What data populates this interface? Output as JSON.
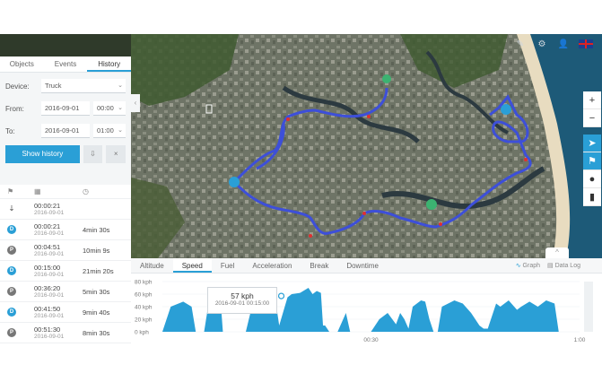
{
  "tabs": [
    {
      "label": "Objects"
    },
    {
      "label": "Events"
    },
    {
      "label": "History"
    }
  ],
  "form": {
    "device_label": "Device:",
    "device_value": "Truck",
    "from_label": "From:",
    "from_date": "2016-09-01",
    "from_time": "00:00",
    "to_label": "To:",
    "to_date": "2016-09-01",
    "to_time": "01:00",
    "show_history": "Show history"
  },
  "history": [
    {
      "type": "",
      "time": "00:00:21",
      "date": "2016-09-01",
      "duration": ""
    },
    {
      "type": "D",
      "time": "00:00:21",
      "date": "2016-09-01",
      "duration": "4min 30s"
    },
    {
      "type": "P",
      "time": "00:04:51",
      "date": "2016-09-01",
      "duration": "10min 9s"
    },
    {
      "type": "D",
      "time": "00:15:00",
      "date": "2016-09-01",
      "duration": "21min 20s"
    },
    {
      "type": "P",
      "time": "00:36:20",
      "date": "2016-09-01",
      "duration": "5min 30s"
    },
    {
      "type": "D",
      "time": "00:41:50",
      "date": "2016-09-01",
      "duration": "9min 40s"
    },
    {
      "type": "P",
      "time": "00:51:30",
      "date": "2016-09-01",
      "duration": "8min 30s"
    }
  ],
  "bottom": {
    "tabs": [
      "Altitude",
      "Speed",
      "Fuel",
      "Acceleration",
      "Break",
      "Downtime"
    ],
    "graph_label": "Graph",
    "datalog_label": "Data Log"
  },
  "tooltip": {
    "value": "57 kph",
    "datetime": "2016-09-01 00:15:00"
  },
  "colors": {
    "accent": "#2a9fd6",
    "route": "#3d4fd9",
    "chart_fill": "#2a9fd6"
  },
  "chart_data": {
    "type": "area",
    "ylabels": [
      "80 kph",
      "60 kph",
      "40 kph",
      "20 kph",
      "0 kph"
    ],
    "yticks": [
      80,
      60,
      40,
      20,
      0
    ],
    "ylim": [
      0,
      80
    ],
    "xlabels": [
      {
        "t": 0.5,
        "label": "00:30"
      },
      {
        "t": 1.0,
        "label": "1:00"
      }
    ],
    "x": [
      0.0,
      0.02,
      0.05,
      0.07,
      0.08,
      0.1,
      0.11,
      0.12,
      0.13,
      0.14,
      0.145,
      0.16,
      0.2,
      0.22,
      0.25,
      0.27,
      0.28,
      0.3,
      0.31,
      0.33,
      0.35,
      0.36,
      0.37,
      0.38,
      0.385,
      0.39,
      0.4,
      0.42,
      0.44,
      0.45,
      0.47,
      0.48,
      0.5,
      0.52,
      0.54,
      0.56,
      0.57,
      0.58,
      0.59,
      0.6,
      0.61,
      0.62,
      0.63,
      0.64,
      0.65,
      0.66,
      0.67,
      0.7,
      0.72,
      0.74,
      0.76,
      0.77,
      0.78,
      0.8,
      0.81,
      0.83,
      0.85,
      0.86,
      0.88,
      0.9,
      0.92,
      0.94,
      0.95,
      0.97,
      0.98,
      1.0
    ],
    "y": [
      0,
      40,
      48,
      40,
      0,
      0,
      42,
      45,
      40,
      45,
      0,
      0,
      0,
      55,
      60,
      55,
      10,
      55,
      60,
      62,
      70,
      60,
      65,
      62,
      10,
      10,
      0,
      0,
      30,
      0,
      0,
      0,
      0,
      20,
      30,
      12,
      30,
      20,
      5,
      40,
      45,
      50,
      48,
      20,
      0,
      0,
      40,
      50,
      45,
      30,
      10,
      5,
      5,
      45,
      40,
      50,
      35,
      40,
      48,
      40,
      50,
      45,
      0,
      0,
      0,
      0
    ]
  }
}
